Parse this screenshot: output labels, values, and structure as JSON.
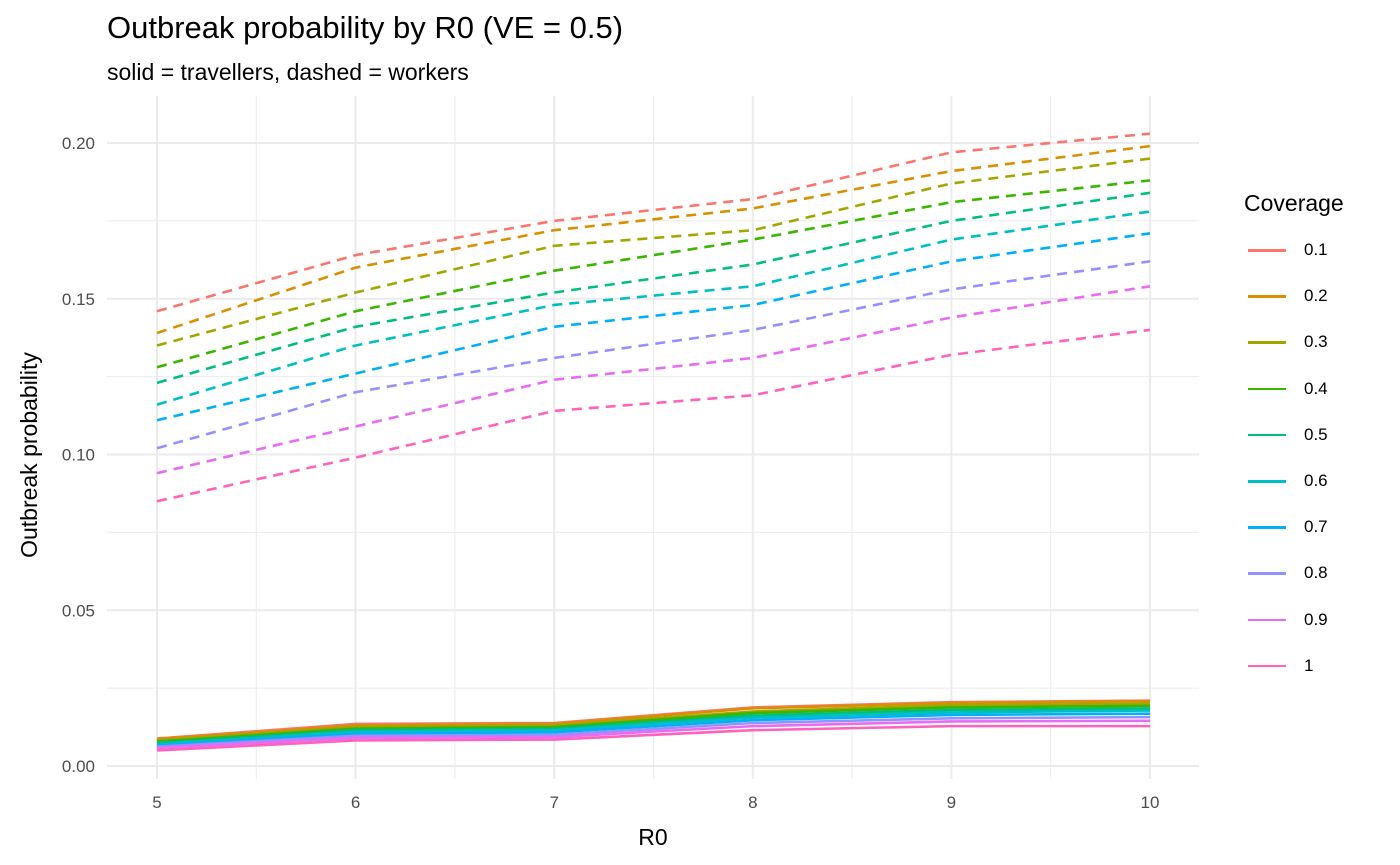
{
  "chart_data": {
    "type": "line",
    "title": "Outbreak probability by R0 (VE = 0.5)",
    "subtitle": "solid = travellers, dashed = workers",
    "xlabel": "R0",
    "ylabel": "Outbreak probability",
    "x": [
      5,
      6,
      7,
      8,
      9,
      10
    ],
    "x_ticks": [
      "5",
      "6",
      "7",
      "8",
      "9",
      "10"
    ],
    "y_ticks": [
      "0.00",
      "0.05",
      "0.10",
      "0.15",
      "0.20"
    ],
    "xlim": [
      4.75,
      10.25
    ],
    "ylim": [
      -0.0035,
      0.2035
    ],
    "grid": true,
    "legend": {
      "title": "Coverage",
      "placement": "right"
    },
    "series": [
      {
        "name": "0.1",
        "color": "#F8766D",
        "travellers": [
          0.0088,
          0.0135,
          0.0138,
          0.0188,
          0.0205,
          0.021
        ],
        "workers": [
          0.146,
          0.164,
          0.175,
          0.182,
          0.197,
          0.203
        ]
      },
      {
        "name": "0.2",
        "color": "#D89000",
        "travellers": [
          0.0086,
          0.013,
          0.0135,
          0.0185,
          0.0202,
          0.0208
        ],
        "workers": [
          0.139,
          0.16,
          0.172,
          0.179,
          0.191,
          0.199
        ]
      },
      {
        "name": "0.3",
        "color": "#A3A500",
        "travellers": [
          0.0082,
          0.0125,
          0.013,
          0.0175,
          0.0195,
          0.02
        ],
        "workers": [
          0.135,
          0.152,
          0.167,
          0.172,
          0.187,
          0.195
        ]
      },
      {
        "name": "0.4",
        "color": "#39B600",
        "travellers": [
          0.0078,
          0.012,
          0.0125,
          0.017,
          0.0188,
          0.0193
        ],
        "workers": [
          0.128,
          0.146,
          0.159,
          0.169,
          0.181,
          0.188
        ]
      },
      {
        "name": "0.5",
        "color": "#00BF7D",
        "travellers": [
          0.0074,
          0.0115,
          0.012,
          0.0162,
          0.018,
          0.0185
        ],
        "workers": [
          0.123,
          0.141,
          0.152,
          0.161,
          0.175,
          0.184
        ]
      },
      {
        "name": "0.6",
        "color": "#00BFC4",
        "travellers": [
          0.007,
          0.011,
          0.0115,
          0.0155,
          0.0172,
          0.0178
        ],
        "workers": [
          0.116,
          0.135,
          0.148,
          0.154,
          0.169,
          0.178
        ]
      },
      {
        "name": "0.7",
        "color": "#00B0F6",
        "travellers": [
          0.0066,
          0.0103,
          0.0108,
          0.0147,
          0.0164,
          0.0168
        ],
        "workers": [
          0.111,
          0.126,
          0.141,
          0.148,
          0.162,
          0.171
        ]
      },
      {
        "name": "0.8",
        "color": "#9590FF",
        "travellers": [
          0.0062,
          0.0097,
          0.01,
          0.0138,
          0.0153,
          0.0157
        ],
        "workers": [
          0.102,
          0.12,
          0.131,
          0.14,
          0.153,
          0.162
        ]
      },
      {
        "name": "0.9",
        "color": "#E76BF3",
        "travellers": [
          0.0058,
          0.009,
          0.0093,
          0.0128,
          0.0143,
          0.0145
        ],
        "workers": [
          0.094,
          0.109,
          0.124,
          0.131,
          0.144,
          0.154
        ]
      },
      {
        "name": "1",
        "color": "#FF62BC",
        "travellers": [
          0.005,
          0.0082,
          0.0085,
          0.0115,
          0.0128,
          0.0128
        ],
        "workers": [
          0.085,
          0.099,
          0.114,
          0.119,
          0.132,
          0.14
        ]
      }
    ]
  }
}
